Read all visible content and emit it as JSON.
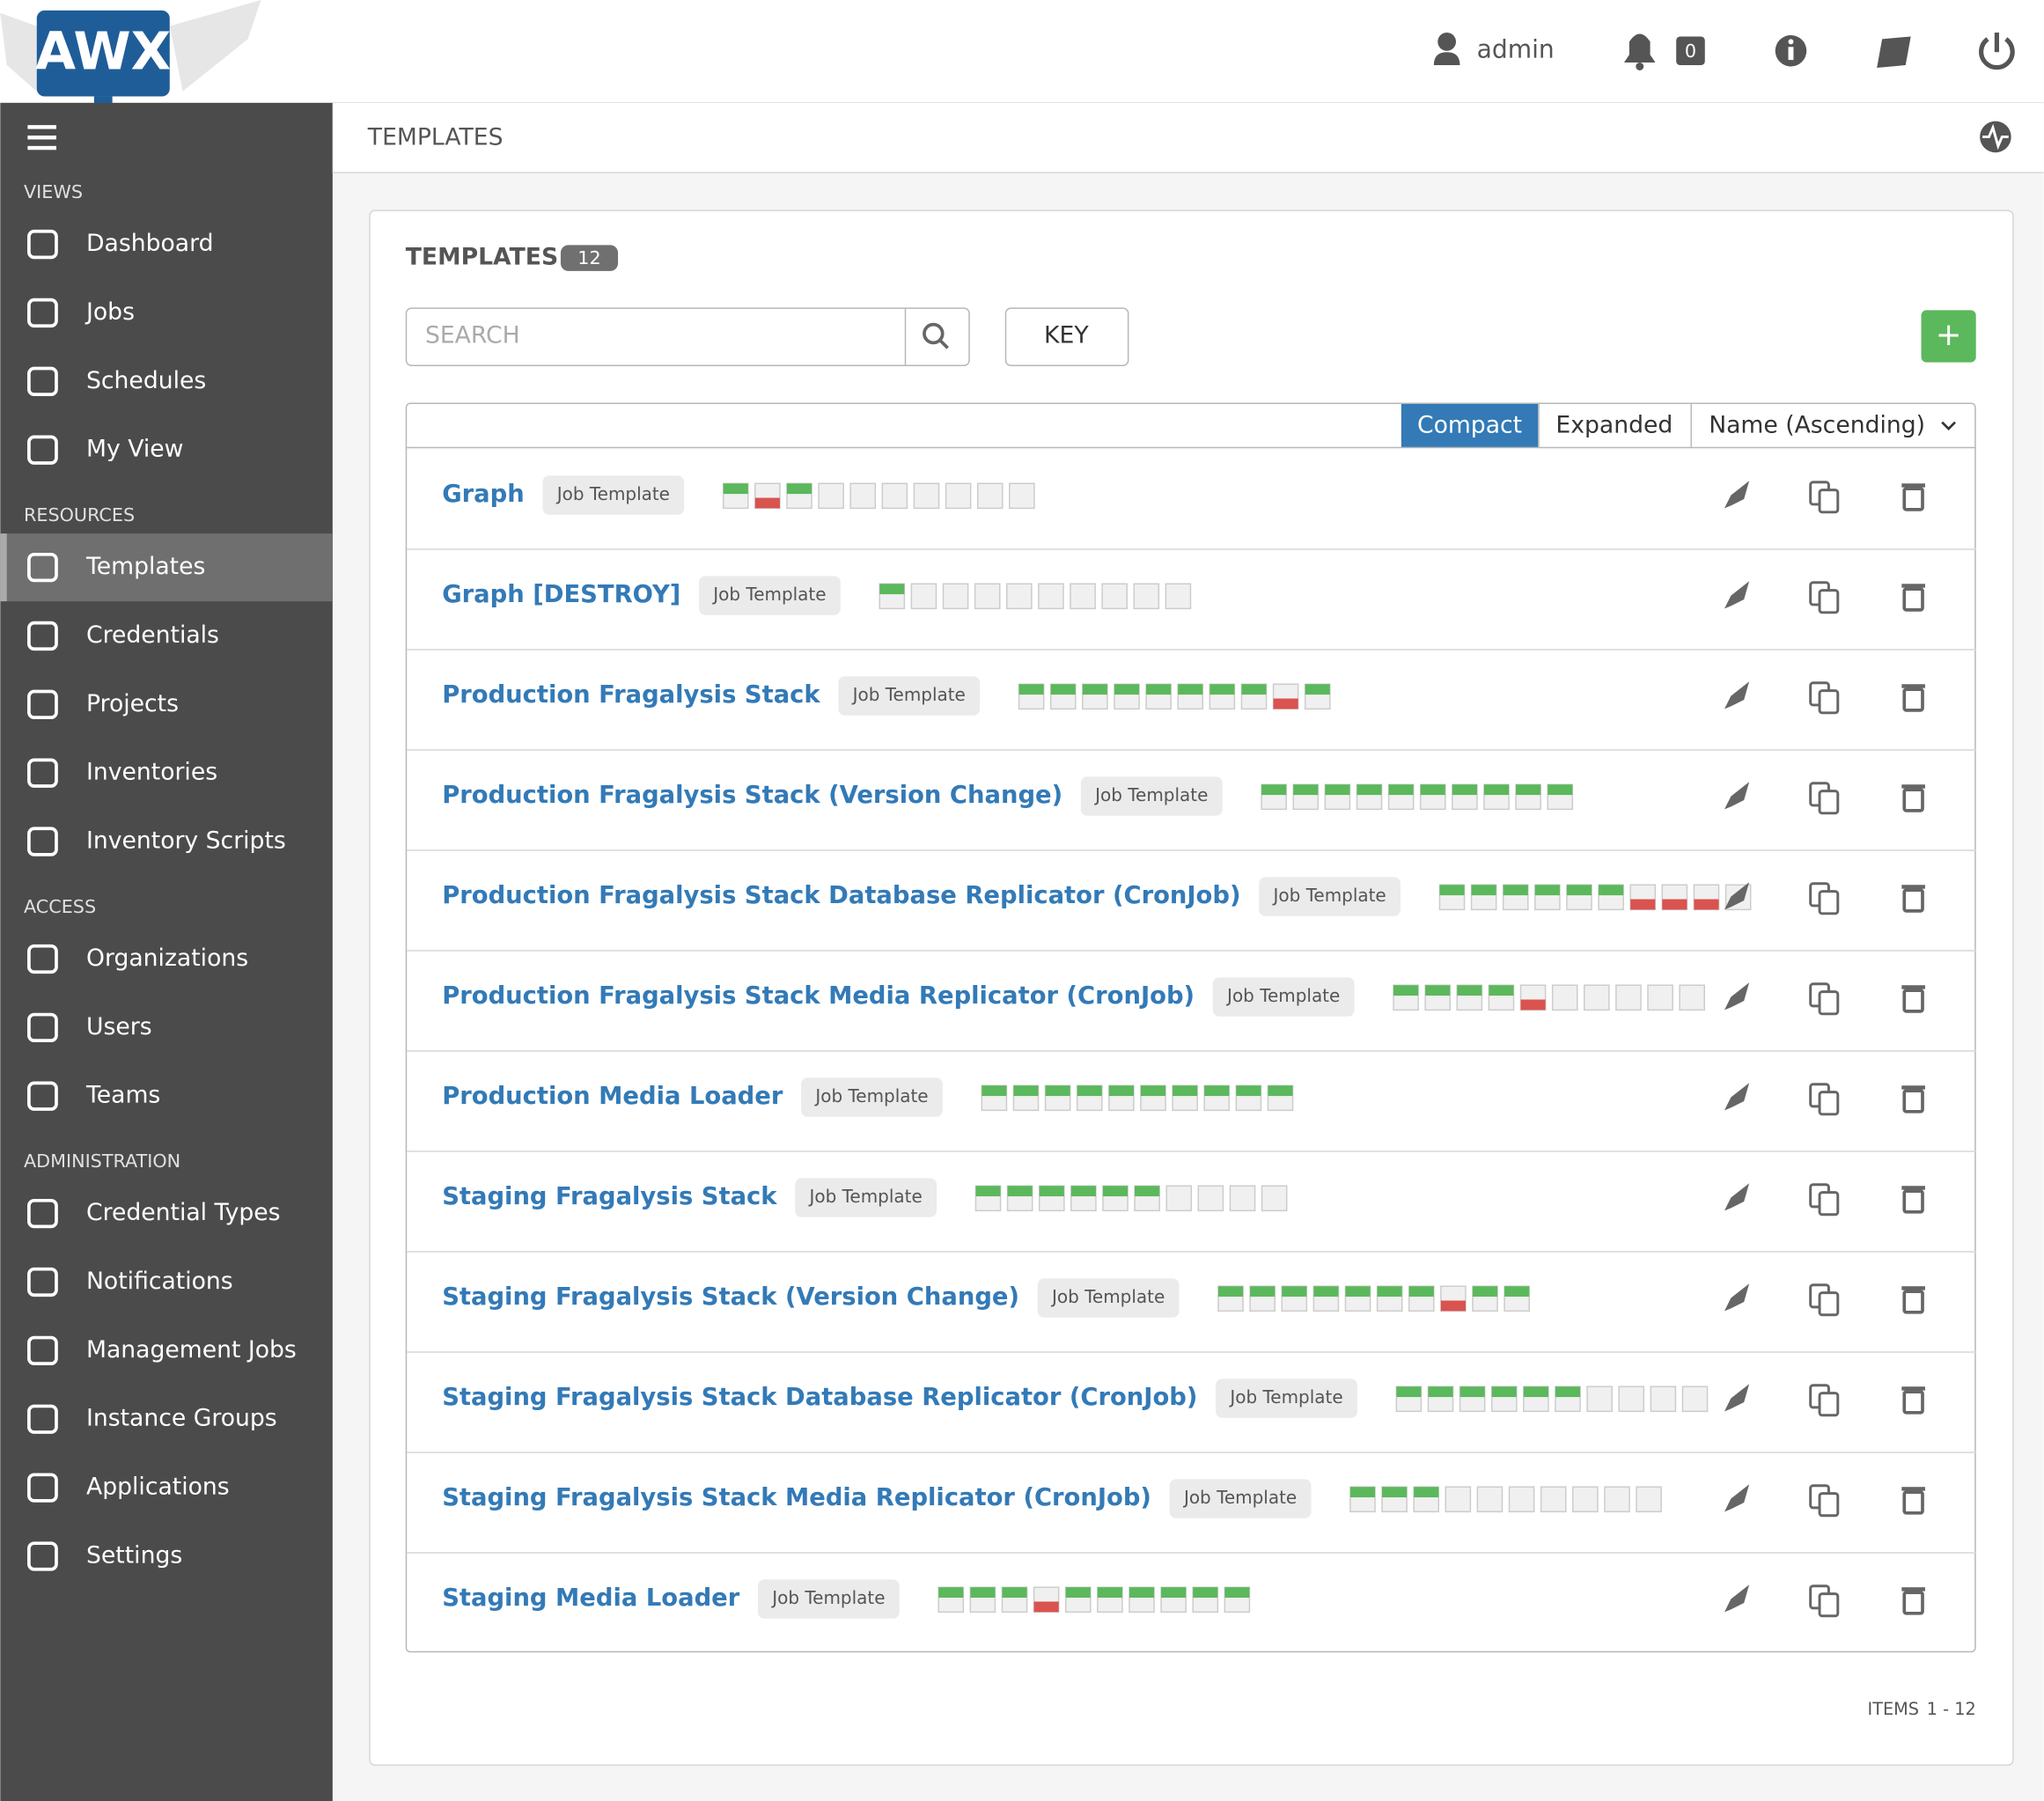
{
  "header": {
    "logo": "AWX",
    "user": "admin",
    "notification_count": "0"
  },
  "sidebar": {
    "sections": [
      {
        "label": "VIEWS",
        "items": [
          "Dashboard",
          "Jobs",
          "Schedules",
          "My View"
        ]
      },
      {
        "label": "RESOURCES",
        "items": [
          "Templates",
          "Credentials",
          "Projects",
          "Inventories",
          "Inventory Scripts"
        ]
      },
      {
        "label": "ACCESS",
        "items": [
          "Organizations",
          "Users",
          "Teams"
        ]
      },
      {
        "label": "ADMINISTRATION",
        "items": [
          "Credential Types",
          "Notifications",
          "Management Jobs",
          "Instance Groups",
          "Applications",
          "Settings"
        ]
      }
    ],
    "active": "Templates"
  },
  "breadcrumb": "TEMPLATES",
  "panel": {
    "title": "TEMPLATES",
    "count": "12",
    "search_placeholder": "SEARCH",
    "key_button": "KEY",
    "add_button": "+",
    "view_buttons": [
      "Compact",
      "Expanded"
    ],
    "active_view": "Compact",
    "sort": "Name (Ascending)",
    "items_label": "ITEMS",
    "items_range": "1 - 12"
  },
  "templates": [
    {
      "name": "Graph",
      "type": "Job Template",
      "jobs": [
        "successful",
        "failed",
        "successful",
        null,
        null,
        null,
        null,
        null,
        null,
        null
      ]
    },
    {
      "name": "Graph [DESTROY]",
      "type": "Job Template",
      "jobs": [
        "successful",
        null,
        null,
        null,
        null,
        null,
        null,
        null,
        null,
        null
      ]
    },
    {
      "name": "Production Fragalysis Stack",
      "type": "Job Template",
      "jobs": [
        "successful",
        "successful",
        "successful",
        "successful",
        "successful",
        "successful",
        "successful",
        "successful",
        "failed",
        "successful"
      ]
    },
    {
      "name": "Production Fragalysis Stack (Version Change)",
      "type": "Job Template",
      "jobs": [
        "successful",
        "successful",
        "successful",
        "successful",
        "successful",
        "successful",
        "successful",
        "successful",
        "successful",
        "successful"
      ]
    },
    {
      "name": "Production Fragalysis Stack Database Replicator (CronJob)",
      "type": "Job Template",
      "jobs": [
        "successful",
        "successful",
        "successful",
        "successful",
        "successful",
        "successful",
        "failed",
        "failed",
        "failed",
        null
      ]
    },
    {
      "name": "Production Fragalysis Stack Media Replicator (CronJob)",
      "type": "Job Template",
      "jobs": [
        "successful",
        "successful",
        "successful",
        "successful",
        "failed",
        null,
        null,
        null,
        null,
        null
      ]
    },
    {
      "name": "Production Media Loader",
      "type": "Job Template",
      "jobs": [
        "successful",
        "successful",
        "successful",
        "successful",
        "successful",
        "successful",
        "successful",
        "successful",
        "successful",
        "successful"
      ]
    },
    {
      "name": "Staging Fragalysis Stack",
      "type": "Job Template",
      "jobs": [
        "successful",
        "successful",
        "successful",
        "successful",
        "successful",
        "successful",
        null,
        null,
        null,
        null
      ]
    },
    {
      "name": "Staging Fragalysis Stack (Version Change)",
      "type": "Job Template",
      "jobs": [
        "successful",
        "successful",
        "successful",
        "successful",
        "successful",
        "successful",
        "successful",
        "failed",
        "successful",
        "successful"
      ]
    },
    {
      "name": "Staging Fragalysis Stack Database Replicator (CronJob)",
      "type": "Job Template",
      "jobs": [
        "successful",
        "successful",
        "successful",
        "successful",
        "successful",
        "successful",
        null,
        null,
        null,
        null
      ]
    },
    {
      "name": "Staging Fragalysis Stack Media Replicator (CronJob)",
      "type": "Job Template",
      "jobs": [
        "successful",
        "successful",
        "successful",
        null,
        null,
        null,
        null,
        null,
        null,
        null
      ]
    },
    {
      "name": "Staging Media Loader",
      "type": "Job Template",
      "jobs": [
        "successful",
        "successful",
        "successful",
        "failed",
        "successful",
        "successful",
        "successful",
        "successful",
        "successful",
        "successful"
      ]
    }
  ]
}
